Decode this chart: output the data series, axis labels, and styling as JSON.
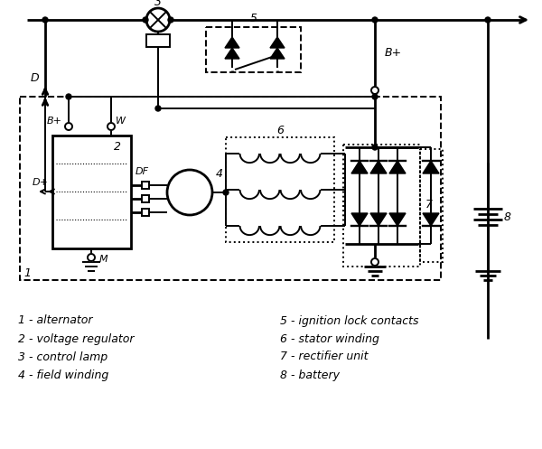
{
  "bg_color": "#ffffff",
  "line_color": "#000000",
  "legend_left": [
    "1 - alternator",
    "2 - voltage regulator",
    "3 - control lamp",
    "4 - field winding"
  ],
  "legend_right": [
    "5 - ignition lock contacts",
    "6 - stator winding",
    "7 - rectifier unit",
    "8 - battery"
  ],
  "figsize": [
    6.0,
    4.97
  ],
  "dpi": 100
}
